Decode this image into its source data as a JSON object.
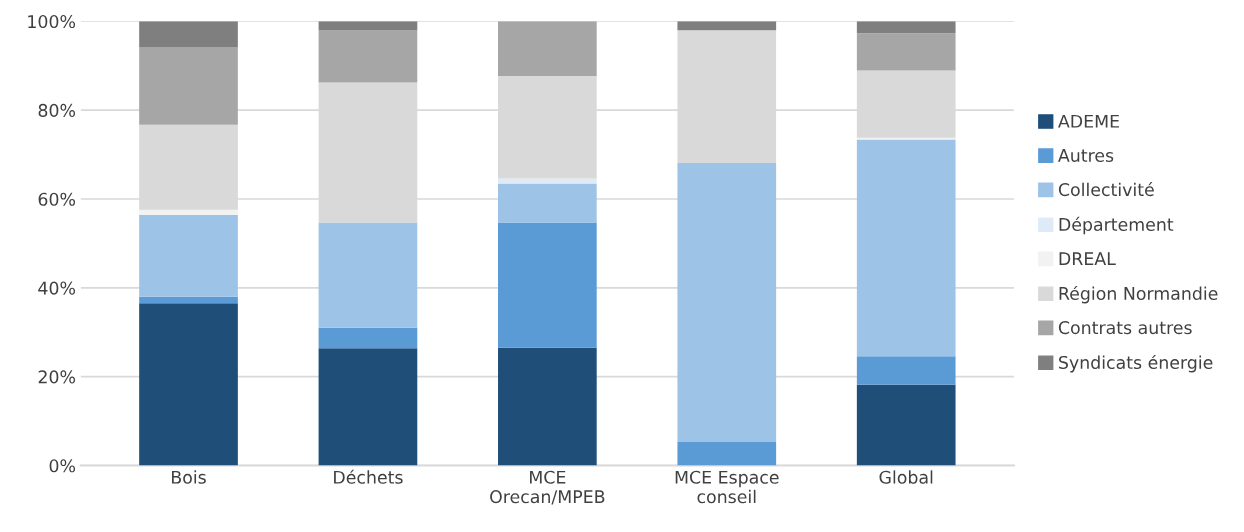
{
  "chart_data": {
    "type": "bar",
    "stacked": true,
    "categories": [
      "Bois",
      "Déchets",
      "MCE\nOrecan/MPEB",
      "MCE Espace\nconseil",
      "Global"
    ],
    "series": [
      {
        "name": "ADEME",
        "color": "#1f4e79",
        "values": [
          36.5,
          26.4,
          26.5,
          null,
          18.2
        ]
      },
      {
        "name": "Autres",
        "color": "#5b9bd5",
        "values": [
          1.5,
          4.6,
          28.2,
          5.3,
          6.4
        ]
      },
      {
        "name": "Collectivité",
        "color": "#9dc3e6",
        "values": [
          18.4,
          23.7,
          8.8,
          62.8,
          48.8
        ]
      },
      {
        "name": "Département",
        "color": "#deebf7",
        "values": [
          null,
          null,
          1.1,
          null,
          null
        ]
      },
      {
        "name": "DREAL",
        "color": "#f2f2f2",
        "values": [
          1.2,
          null,
          null,
          null,
          0.4
        ]
      },
      {
        "name": "Région Normandie",
        "color": "#d9d9d9",
        "values": [
          19.1,
          31.5,
          23.1,
          29.9,
          15.1
        ]
      },
      {
        "name": "Contrats autres",
        "color": "#a6a6a6",
        "values": [
          17.5,
          11.7,
          12.3,
          null,
          8.4
        ]
      },
      {
        "name": "Syndicats énergie",
        "color": "#7f7f7f",
        "values": [
          5.8,
          2.1,
          null,
          2.0,
          2.7
        ]
      }
    ],
    "ylim": [
      0,
      100
    ],
    "yticks": [
      {
        "value": 0,
        "label": "0%"
      },
      {
        "value": 20,
        "label": "20%"
      },
      {
        "value": 40,
        "label": "40%"
      },
      {
        "value": 60,
        "label": "60%"
      },
      {
        "value": 80,
        "label": "80%"
      },
      {
        "value": 100,
        "label": "100%"
      }
    ],
    "grid": "y",
    "legend": "right"
  }
}
